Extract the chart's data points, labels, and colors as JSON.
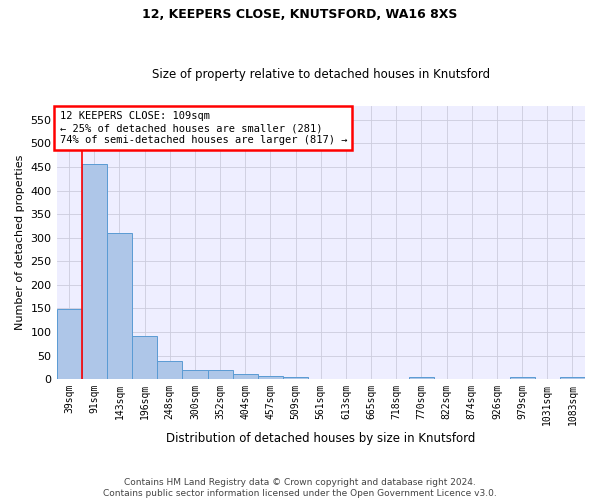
{
  "title1": "12, KEEPERS CLOSE, KNUTSFORD, WA16 8XS",
  "title2": "Size of property relative to detached houses in Knutsford",
  "xlabel": "Distribution of detached houses by size in Knutsford",
  "ylabel": "Number of detached properties",
  "categories": [
    "39sqm",
    "91sqm",
    "143sqm",
    "196sqm",
    "248sqm",
    "300sqm",
    "352sqm",
    "404sqm",
    "457sqm",
    "509sqm",
    "561sqm",
    "613sqm",
    "665sqm",
    "718sqm",
    "770sqm",
    "822sqm",
    "874sqm",
    "926sqm",
    "979sqm",
    "1031sqm",
    "1083sqm"
  ],
  "values": [
    148,
    457,
    310,
    92,
    38,
    19,
    20,
    10,
    7,
    5,
    0,
    0,
    0,
    0,
    5,
    0,
    0,
    0,
    5,
    0,
    5
  ],
  "bar_color": "#aec6e8",
  "bar_edge_color": "#5a9bd4",
  "red_line_x": 0.5,
  "annotation_line1": "12 KEEPERS CLOSE: 109sqm",
  "annotation_line2": "← 25% of detached houses are smaller (281)",
  "annotation_line3": "74% of semi-detached houses are larger (817) →",
  "ylim": [
    0,
    580
  ],
  "yticks": [
    0,
    50,
    100,
    150,
    200,
    250,
    300,
    350,
    400,
    450,
    500,
    550
  ],
  "footer_text": "Contains HM Land Registry data © Crown copyright and database right 2024.\nContains public sector information licensed under the Open Government Licence v3.0.",
  "background_color": "#eeeeff",
  "grid_color": "#ccccdd",
  "title1_fontsize": 9,
  "title2_fontsize": 8.5,
  "xlabel_fontsize": 8.5,
  "ylabel_fontsize": 8,
  "tick_fontsize": 7,
  "footer_fontsize": 6.5
}
